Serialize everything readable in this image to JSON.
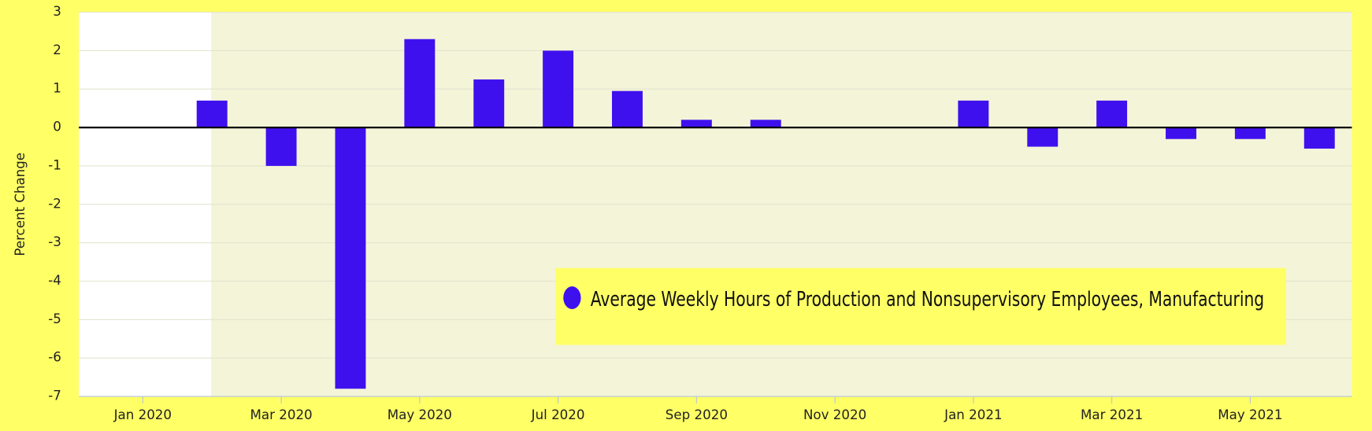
{
  "chart_data": {
    "type": "bar",
    "y_label": "Percent Change",
    "categories": [
      "Jan 2020",
      null,
      "Mar 2020",
      null,
      "May 2020",
      null,
      "Jul 2020",
      null,
      "Sep 2020",
      null,
      "Nov 2020",
      null,
      "Jan 2021",
      null,
      "Mar 2021",
      null,
      "May 2021",
      null
    ],
    "series": [
      {
        "name": "Average Weekly Hours of Production and Nonsupervisory Employees, Manufacturing",
        "color": "#3f10ee",
        "values": [
          0,
          0.7,
          -1.0,
          -6.8,
          2.3,
          1.25,
          2.0,
          0.95,
          0.2,
          0.2,
          0,
          0,
          0.7,
          -0.5,
          0.7,
          -0.3,
          -0.3,
          -0.55
        ]
      }
    ],
    "ylim": [
      -7,
      3
    ],
    "yticks": [
      -7,
      -6,
      -5,
      -4,
      -3,
      -2,
      -1,
      0,
      1,
      2,
      3
    ],
    "grid": true
  }
}
